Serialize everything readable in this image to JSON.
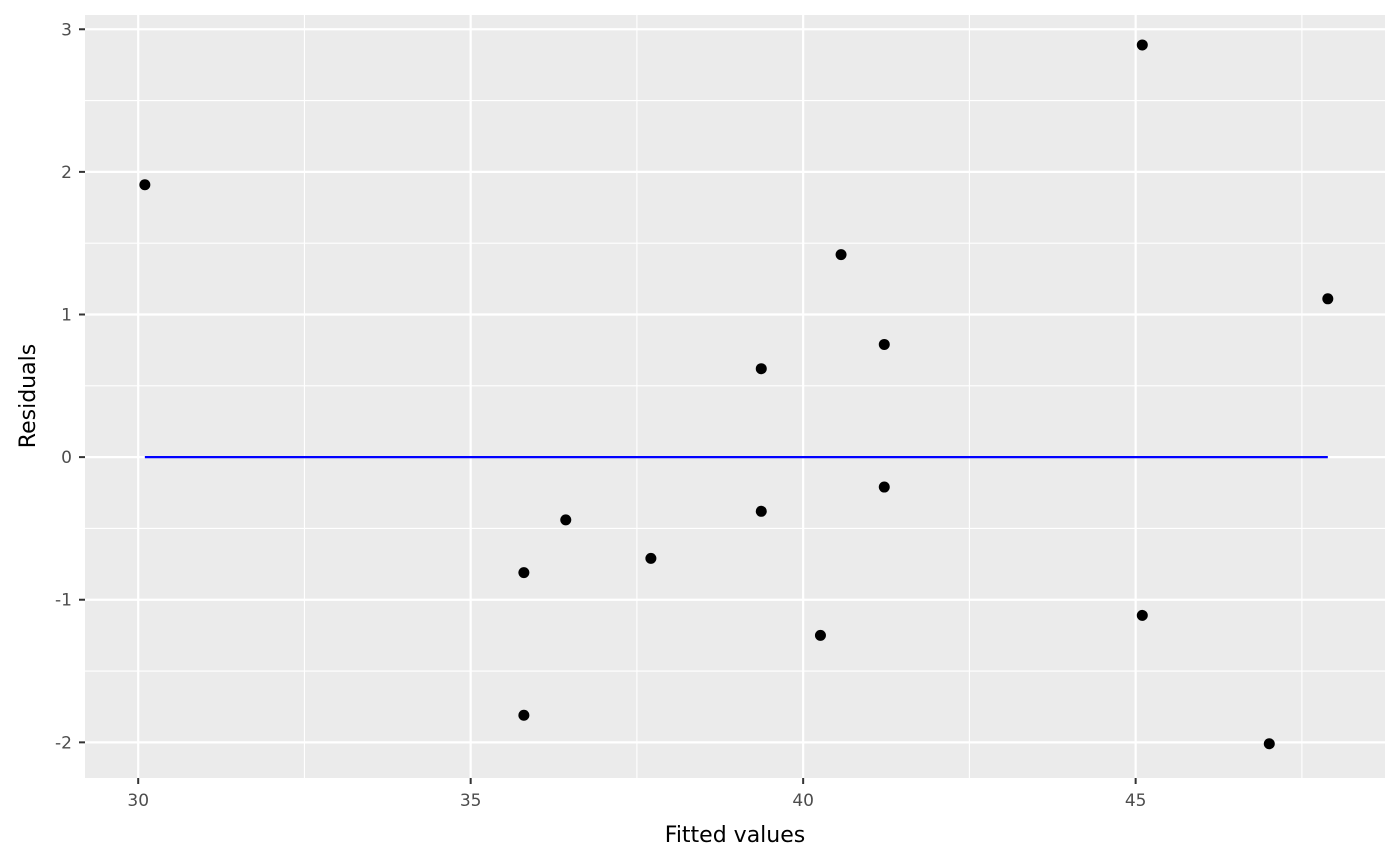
{
  "chart_data": {
    "type": "scatter",
    "title": "",
    "xlabel": "Fitted values",
    "ylabel": "Residuals",
    "xlim": [
      29.2,
      48.75
    ],
    "ylim": [
      -2.25,
      3.1
    ],
    "x_ticks": [
      30,
      35,
      40,
      45
    ],
    "x_tick_labels": [
      "30",
      "35",
      "40",
      "45"
    ],
    "y_ticks": [
      -2,
      -1,
      0,
      1,
      2,
      3
    ],
    "y_tick_labels": [
      "-2",
      "-1",
      "0",
      "1",
      "2",
      "3"
    ],
    "grid": true,
    "points": [
      {
        "x": 30.1,
        "y": 1.91
      },
      {
        "x": 35.8,
        "y": -0.81
      },
      {
        "x": 35.8,
        "y": -1.81
      },
      {
        "x": 36.43,
        "y": -0.44
      },
      {
        "x": 37.71,
        "y": -0.71
      },
      {
        "x": 39.37,
        "y": 0.62
      },
      {
        "x": 39.37,
        "y": -0.38
      },
      {
        "x": 40.26,
        "y": -1.25
      },
      {
        "x": 40.57,
        "y": 1.42
      },
      {
        "x": 41.22,
        "y": 0.79
      },
      {
        "x": 41.22,
        "y": -0.21
      },
      {
        "x": 45.1,
        "y": 2.89
      },
      {
        "x": 45.1,
        "y": -1.11
      },
      {
        "x": 47.01,
        "y": -2.01
      },
      {
        "x": 47.89,
        "y": 1.11
      }
    ],
    "reference_line": {
      "y": 0,
      "x_from": 30.1,
      "x_to": 47.89
    },
    "colors": {
      "panel_background": "#ebebeb",
      "grid": "#ffffff",
      "points": "#000000",
      "reference_line": "#0000ff"
    }
  }
}
